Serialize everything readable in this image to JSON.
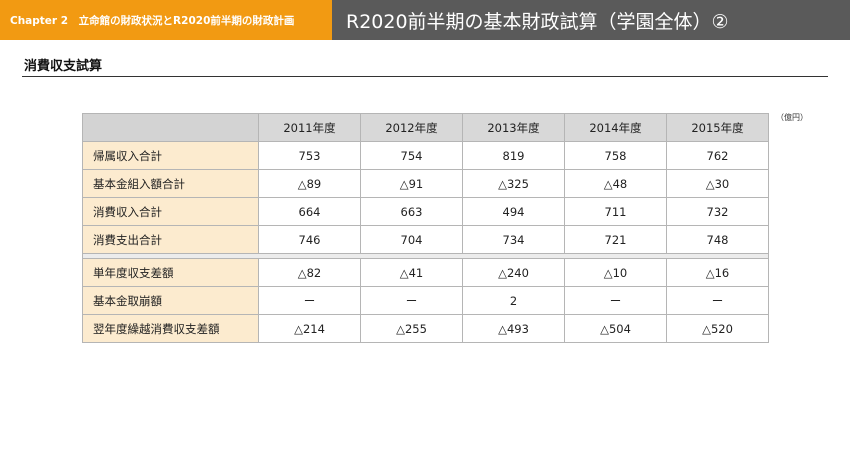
{
  "header": {
    "chapter": "Chapter 2　立命館の財政状況とR2020前半期の財政計画",
    "title": "R2020前半期の基本財政試算（学園全体）②"
  },
  "section": {
    "title": "消費収支試算"
  },
  "unit": "（億円）",
  "table": {
    "columns": [
      "2011年度",
      "2012年度",
      "2013年度",
      "2014年度",
      "2015年度"
    ],
    "group1": [
      {
        "label": "帰属収入合計",
        "values": [
          "753",
          "754",
          "819",
          "758",
          "762"
        ]
      },
      {
        "label": "基本金組入額合計",
        "values": [
          "△89",
          "△91",
          "△325",
          "△48",
          "△30"
        ]
      },
      {
        "label": "消費収入合計",
        "values": [
          "664",
          "663",
          "494",
          "711",
          "732"
        ]
      },
      {
        "label": "消費支出合計",
        "values": [
          "746",
          "704",
          "734",
          "721",
          "748"
        ]
      }
    ],
    "group2": [
      {
        "label": "単年度収支差額",
        "values": [
          "△82",
          "△41",
          "△240",
          "△10",
          "△16"
        ]
      },
      {
        "label": "基本金取崩額",
        "values": [
          "ー",
          "ー",
          "2",
          "ー",
          "ー"
        ]
      },
      {
        "label": "翌年度繰越消費収支差額",
        "values": [
          "△214",
          "△255",
          "△493",
          "△504",
          "△520"
        ]
      }
    ]
  }
}
